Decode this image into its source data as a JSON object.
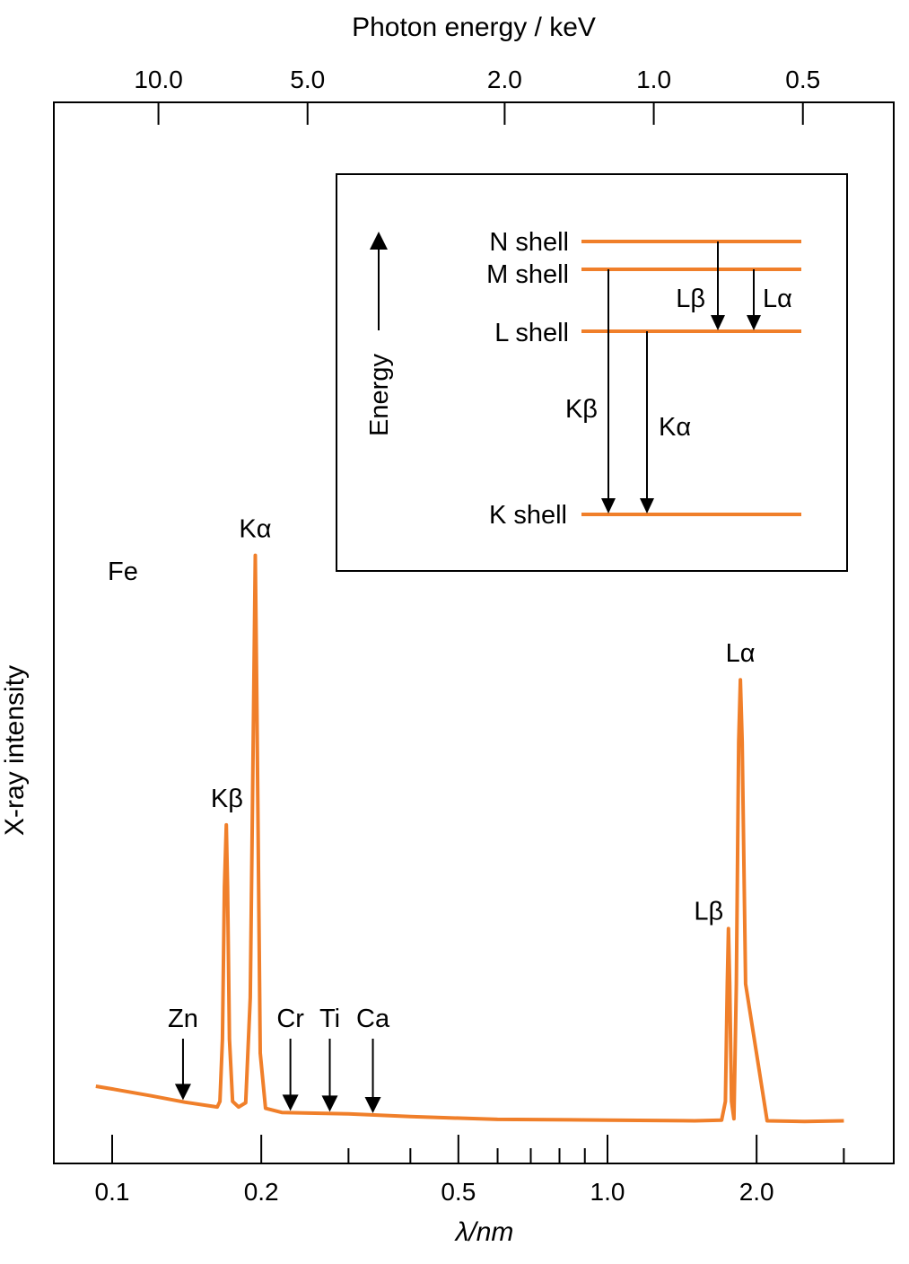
{
  "chart_data": {
    "type": "line",
    "element_label": "Fe",
    "xlabel": "λ/nm",
    "x2label": "Photon energy / keV",
    "ylabel": "X-ray intensity",
    "x_scale": "log",
    "xlim": [
      0.09,
      3.2
    ],
    "x_ticks_major": [
      {
        "value": 0.1,
        "label": "0.1"
      },
      {
        "value": 0.2,
        "label": "0.2"
      },
      {
        "value": 0.5,
        "label": "0.5"
      },
      {
        "value": 1.0,
        "label": "1.0"
      },
      {
        "value": 2.0,
        "label": "2.0"
      }
    ],
    "x_ticks_minor": [
      0.3,
      0.4,
      0.6,
      0.7,
      0.8,
      0.9,
      3.0
    ],
    "x2_ticks": [
      {
        "value": 10.0,
        "label": "10.0"
      },
      {
        "value": 5.0,
        "label": "5.0"
      },
      {
        "value": 2.0,
        "label": "2.0"
      },
      {
        "value": 1.0,
        "label": "1.0"
      },
      {
        "value": 0.5,
        "label": "0.5"
      }
    ],
    "hc_kev_nm": 1.24,
    "ylim": [
      0,
      1
    ],
    "series": [
      {
        "x": [
          0.0927,
          0.1,
          0.12,
          0.14,
          0.163,
          0.165,
          0.167,
          0.1685,
          0.17,
          0.171,
          0.1725,
          0.175,
          0.18,
          0.186,
          0.19,
          0.193,
          0.1945,
          0.196,
          0.199,
          0.204,
          0.22,
          0.3,
          0.4,
          0.6,
          1.0,
          1.5,
          1.7,
          1.73,
          1.745,
          1.755,
          1.765,
          1.78,
          1.8,
          1.82,
          1.84,
          1.855,
          1.87,
          1.9,
          2.1,
          2.5,
          3.0
        ],
        "y": [
          0.052,
          0.048,
          0.038,
          0.029,
          0.022,
          0.03,
          0.12,
          0.34,
          0.43,
          0.34,
          0.12,
          0.03,
          0.022,
          0.028,
          0.18,
          0.6,
          0.82,
          0.6,
          0.1,
          0.02,
          0.014,
          0.012,
          0.008,
          0.004,
          0.003,
          0.002,
          0.003,
          0.03,
          0.2,
          0.28,
          0.2,
          0.03,
          0.005,
          0.2,
          0.55,
          0.64,
          0.55,
          0.2,
          0.002,
          0.001,
          0.002
        ]
      }
    ],
    "peaks": [
      {
        "label": "Kβ",
        "x": 0.1705,
        "y": 0.43
      },
      {
        "label": "Kα",
        "x": 0.1945,
        "y": 0.82
      },
      {
        "label": "Lβ",
        "x": 1.755,
        "y": 0.28
      },
      {
        "label": "Lα",
        "x": 1.855,
        "y": 0.64
      }
    ],
    "markers": [
      {
        "label": "Zn",
        "x": 0.139
      },
      {
        "label": "Cr",
        "x": 0.229
      },
      {
        "label": "Ti",
        "x": 0.275
      },
      {
        "label": "Ca",
        "x": 0.336
      }
    ]
  },
  "inset": {
    "energy_label": "Energy",
    "shells": [
      {
        "key": "N",
        "label": "N shell"
      },
      {
        "key": "M",
        "label": "M shell"
      },
      {
        "key": "L",
        "label": "L shell"
      },
      {
        "key": "K",
        "label": "K shell"
      }
    ],
    "transitions": [
      {
        "label": "Lβ",
        "from": "N",
        "to": "L"
      },
      {
        "label": "Lα",
        "from": "M",
        "to": "L"
      },
      {
        "label": "Kβ",
        "from": "M",
        "to": "K"
      },
      {
        "label": "Kα",
        "from": "L",
        "to": "K"
      }
    ]
  },
  "colors": {
    "spectrum": "#f07f2a",
    "shell": "#f07f2a",
    "ink": "#000000"
  }
}
